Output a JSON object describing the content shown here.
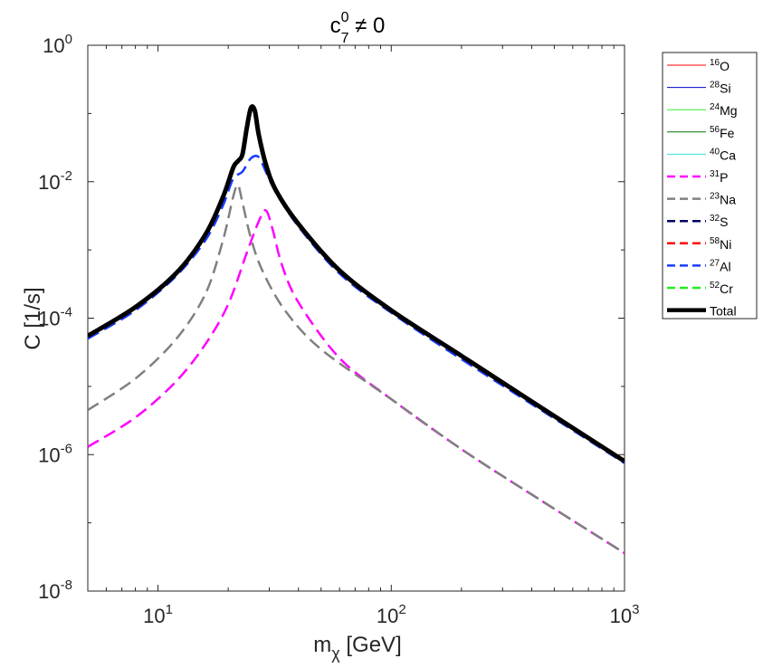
{
  "chart_data": {
    "type": "line",
    "title": {
      "base": "c",
      "sup": "0",
      "sub": "7",
      "rest": " ≠ 0"
    },
    "xlabel": {
      "base": "m",
      "sub": "χ",
      "rest": " [GeV]"
    },
    "ylabel": "C [1/s]",
    "xscale": "log",
    "yscale": "log",
    "xlim": [
      5,
      1000
    ],
    "ylim": [
      1e-08,
      1
    ],
    "x_ticks": [
      {
        "value": 10,
        "base": "10",
        "exp": "1"
      },
      {
        "value": 100,
        "base": "10",
        "exp": "2"
      },
      {
        "value": 1000,
        "base": "10",
        "exp": "3"
      }
    ],
    "y_ticks": [
      {
        "value": 1,
        "base": "10",
        "exp": "0"
      },
      {
        "value": 0.01,
        "base": "10",
        "exp": "-2"
      },
      {
        "value": 0.0001,
        "base": "10",
        "exp": "-4"
      },
      {
        "value": 1e-06,
        "base": "10",
        "exp": "-6"
      },
      {
        "value": 1e-08,
        "base": "10",
        "exp": "-8"
      }
    ],
    "legend_position": "outside-right",
    "series": [
      {
        "name": "O",
        "mass_number": "16",
        "color": "#ff0000",
        "dash": "solid",
        "width": 1,
        "points": []
      },
      {
        "name": "Si",
        "mass_number": "28",
        "color": "#0000cc",
        "dash": "solid",
        "width": 1,
        "points": []
      },
      {
        "name": "Mg",
        "mass_number": "24",
        "color": "#33ee33",
        "dash": "solid",
        "width": 1,
        "points": []
      },
      {
        "name": "Fe",
        "mass_number": "56",
        "color": "#007700",
        "dash": "solid",
        "width": 1,
        "points": []
      },
      {
        "name": "Ca",
        "mass_number": "40",
        "color": "#33dddd",
        "dash": "solid",
        "width": 1,
        "points": []
      },
      {
        "name": "P",
        "mass_number": "31",
        "color": "#ff00ff",
        "dash": "dashed",
        "width": 2.5,
        "points": [
          [
            5,
            1.3e-06
          ],
          [
            8,
            3.5e-06
          ],
          [
            12,
            1.2e-05
          ],
          [
            16,
            4.2e-05
          ],
          [
            20,
            0.00016
          ],
          [
            24,
            0.0009
          ],
          [
            27,
            0.0026
          ],
          [
            29,
            0.0038
          ],
          [
            31,
            0.002
          ],
          [
            34,
            0.0006
          ],
          [
            40,
            0.00017
          ],
          [
            60,
            2.6e-05
          ],
          [
            100,
            6.5e-06
          ],
          [
            200,
            1.2e-06
          ],
          [
            400,
            2.6e-07
          ],
          [
            1000,
            3.6e-08
          ]
        ]
      },
      {
        "name": "Na",
        "mass_number": "23",
        "color": "#808080",
        "dash": "dashed",
        "width": 2.5,
        "points": [
          [
            5,
            4.5e-06
          ],
          [
            8,
            1.3e-05
          ],
          [
            12,
            5e-05
          ],
          [
            16,
            0.00023
          ],
          [
            19,
            0.0014
          ],
          [
            21,
            0.006
          ],
          [
            22,
            0.009
          ],
          [
            23,
            0.005
          ],
          [
            25,
            0.0015
          ],
          [
            28,
            0.0005
          ],
          [
            35,
            0.00013
          ],
          [
            50,
            3.5e-05
          ],
          [
            100,
            6.5e-06
          ],
          [
            200,
            1.2e-06
          ],
          [
            400,
            2.6e-07
          ],
          [
            1000,
            3.6e-08
          ]
        ]
      },
      {
        "name": "S",
        "mass_number": "32",
        "color": "#000066",
        "dash": "dashed",
        "width": 2.5,
        "points": []
      },
      {
        "name": "Ni",
        "mass_number": "58",
        "color": "#ff0000",
        "dash": "dashed",
        "width": 2.5,
        "points": []
      },
      {
        "name": "Al",
        "mass_number": "27",
        "color": "#1a3cff",
        "dash": "dashed",
        "width": 2.5,
        "points": [
          [
            5,
            5e-05
          ],
          [
            8,
            0.00013
          ],
          [
            12,
            0.00042
          ],
          [
            16,
            0.0014
          ],
          [
            19,
            0.0045
          ],
          [
            21,
            0.011
          ],
          [
            23,
            0.014
          ],
          [
            25,
            0.022
          ],
          [
            27,
            0.023
          ],
          [
            29,
            0.014
          ],
          [
            32,
            0.007
          ],
          [
            40,
            0.0022
          ],
          [
            60,
            0.00045
          ],
          [
            100,
            0.00012
          ],
          [
            200,
            2.5e-05
          ],
          [
            400,
            5.5e-06
          ],
          [
            1000,
            7.5e-07
          ]
        ]
      },
      {
        "name": "Cr",
        "mass_number": "52",
        "color": "#22ee22",
        "dash": "dashed",
        "width": 2.5,
        "points": []
      },
      {
        "name": "Total",
        "mass_number": "",
        "color": "#000000",
        "dash": "solid",
        "width": 5,
        "points": [
          [
            5,
            5.5e-05
          ],
          [
            8,
            0.000145
          ],
          [
            12,
            0.00046
          ],
          [
            16,
            0.0017
          ],
          [
            19,
            0.006
          ],
          [
            21,
            0.016
          ],
          [
            22,
            0.02
          ],
          [
            23,
            0.025
          ],
          [
            24,
            0.06
          ],
          [
            25,
            0.12
          ],
          [
            26,
            0.11
          ],
          [
            27,
            0.05
          ],
          [
            29,
            0.018
          ],
          [
            32,
            0.0075
          ],
          [
            40,
            0.0024
          ],
          [
            60,
            0.0005
          ],
          [
            100,
            0.00013
          ],
          [
            200,
            2.8e-05
          ],
          [
            400,
            6e-06
          ],
          [
            1000,
            8e-07
          ]
        ]
      }
    ]
  }
}
